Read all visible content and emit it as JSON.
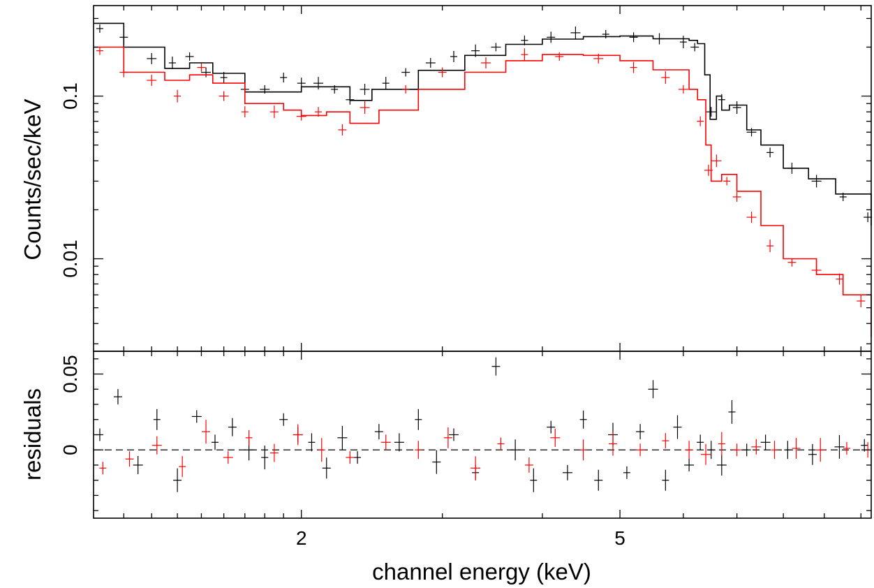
{
  "colors": {
    "series_1": "#000000",
    "series_2": "#ff0000"
  },
  "chart_data": [
    {
      "type": "line",
      "panel": "spectrum",
      "title": "",
      "xlabel": "",
      "ylabel": "Counts/sec/keV",
      "xscale": "log",
      "yscale": "log",
      "xlim": [
        1.1,
        10.3
      ],
      "ylim": [
        0.0027,
        0.36
      ],
      "x_ticks": [
        2,
        5
      ],
      "x_tick_labels": [
        "",
        ""
      ],
      "y_ticks": [
        0.01,
        0.1
      ],
      "y_tick_labels": [
        "0.01",
        "0.1"
      ],
      "grid": false,
      "legend": "none",
      "series": [
        {
          "color": "#000000",
          "model": [
            [
              1.1,
              0.28
            ],
            [
              1.2,
              0.2
            ],
            [
              1.35,
              0.148
            ],
            [
              1.45,
              0.16
            ],
            [
              1.55,
              0.138
            ],
            [
              1.7,
              0.106
            ],
            [
              1.85,
              0.106
            ],
            [
              2.0,
              0.114
            ],
            [
              2.15,
              0.114
            ],
            [
              2.3,
              0.094
            ],
            [
              2.45,
              0.11
            ],
            [
              2.8,
              0.144
            ],
            [
              3.2,
              0.178
            ],
            [
              3.6,
              0.208
            ],
            [
              4.0,
              0.224
            ],
            [
              4.5,
              0.232
            ],
            [
              5.0,
              0.234
            ],
            [
              5.5,
              0.225
            ],
            [
              6.1,
              0.22
            ],
            [
              6.25,
              0.21
            ],
            [
              6.38,
              0.135
            ],
            [
              6.48,
              0.072
            ],
            [
              6.6,
              0.1
            ],
            [
              6.7,
              0.082
            ],
            [
              6.85,
              0.088
            ],
            [
              7.2,
              0.062
            ],
            [
              7.5,
              0.05
            ],
            [
              8.0,
              0.036
            ],
            [
              8.6,
              0.031
            ],
            [
              9.3,
              0.025
            ],
            [
              10.3,
              0.016
            ]
          ],
          "points": [
            [
              1.12,
              0.26
            ],
            [
              1.2,
              0.23
            ],
            [
              1.3,
              0.17
            ],
            [
              1.38,
              0.16
            ],
            [
              1.45,
              0.175
            ],
            [
              1.52,
              0.14
            ],
            [
              1.6,
              0.13
            ],
            [
              1.7,
              0.11
            ],
            [
              1.8,
              0.11
            ],
            [
              1.9,
              0.13
            ],
            [
              2.0,
              0.12
            ],
            [
              2.1,
              0.12
            ],
            [
              2.2,
              0.11
            ],
            [
              2.3,
              0.095
            ],
            [
              2.4,
              0.11
            ],
            [
              2.55,
              0.12
            ],
            [
              2.7,
              0.14
            ],
            [
              2.9,
              0.16
            ],
            [
              3.1,
              0.175
            ],
            [
              3.3,
              0.19
            ],
            [
              3.5,
              0.2
            ],
            [
              3.8,
              0.22
            ],
            [
              4.1,
              0.23
            ],
            [
              4.4,
              0.245
            ],
            [
              4.8,
              0.24
            ],
            [
              5.2,
              0.23
            ],
            [
              5.6,
              0.225
            ],
            [
              6.0,
              0.215
            ],
            [
              6.2,
              0.2
            ],
            [
              6.5,
              0.08
            ],
            [
              6.7,
              0.095
            ],
            [
              7.0,
              0.085
            ],
            [
              7.3,
              0.06
            ],
            [
              7.7,
              0.045
            ],
            [
              8.2,
              0.036
            ],
            [
              8.8,
              0.03
            ],
            [
              9.5,
              0.024
            ],
            [
              10.2,
              0.018
            ]
          ]
        },
        {
          "color": "#ff0000",
          "model": [
            [
              1.1,
              0.2
            ],
            [
              1.2,
              0.14
            ],
            [
              1.35,
              0.125
            ],
            [
              1.45,
              0.135
            ],
            [
              1.55,
              0.12
            ],
            [
              1.7,
              0.09
            ],
            [
              1.9,
              0.082
            ],
            [
              2.0,
              0.076
            ],
            [
              2.15,
              0.08
            ],
            [
              2.3,
              0.068
            ],
            [
              2.5,
              0.082
            ],
            [
              2.8,
              0.11
            ],
            [
              3.2,
              0.14
            ],
            [
              3.6,
              0.165
            ],
            [
              4.0,
              0.18
            ],
            [
              4.5,
              0.178
            ],
            [
              5.0,
              0.165
            ],
            [
              5.5,
              0.145
            ],
            [
              6.1,
              0.11
            ],
            [
              6.25,
              0.095
            ],
            [
              6.4,
              0.05
            ],
            [
              6.5,
              0.03
            ],
            [
              6.7,
              0.033
            ],
            [
              7.0,
              0.026
            ],
            [
              7.5,
              0.016
            ],
            [
              8.0,
              0.01
            ],
            [
              8.8,
              0.008
            ],
            [
              9.5,
              0.006
            ],
            [
              10.3,
              0.0033
            ]
          ],
          "points": [
            [
              1.12,
              0.19
            ],
            [
              1.2,
              0.14
            ],
            [
              1.3,
              0.125
            ],
            [
              1.4,
              0.1
            ],
            [
              1.5,
              0.15
            ],
            [
              1.6,
              0.1
            ],
            [
              1.7,
              0.08
            ],
            [
              1.85,
              0.08
            ],
            [
              2.0,
              0.075
            ],
            [
              2.1,
              0.08
            ],
            [
              2.25,
              0.062
            ],
            [
              2.4,
              0.085
            ],
            [
              2.7,
              0.11
            ],
            [
              3.0,
              0.14
            ],
            [
              3.4,
              0.16
            ],
            [
              3.8,
              0.18
            ],
            [
              4.2,
              0.175
            ],
            [
              4.7,
              0.17
            ],
            [
              5.2,
              0.15
            ],
            [
              5.7,
              0.13
            ],
            [
              6.0,
              0.11
            ],
            [
              6.3,
              0.07
            ],
            [
              6.45,
              0.035
            ],
            [
              6.6,
              0.04
            ],
            [
              6.8,
              0.03
            ],
            [
              7.0,
              0.024
            ],
            [
              7.3,
              0.018
            ],
            [
              7.7,
              0.012
            ],
            [
              8.2,
              0.0095
            ],
            [
              8.8,
              0.0085
            ],
            [
              9.4,
              0.0075
            ],
            [
              10.0,
              0.0055
            ]
          ]
        }
      ]
    },
    {
      "type": "scatter",
      "panel": "residuals",
      "title": "",
      "xlabel": "channel energy (keV)",
      "ylabel": "residuals",
      "xscale": "log",
      "yscale": "linear",
      "xlim": [
        1.1,
        10.3
      ],
      "ylim": [
        -0.045,
        0.065
      ],
      "x_ticks": [
        2,
        5
      ],
      "x_tick_labels": [
        "2",
        "5"
      ],
      "y_ticks": [
        0,
        0.05
      ],
      "y_tick_labels": [
        "0",
        "0.05"
      ],
      "grid": false,
      "legend": "none",
      "baseline": 0,
      "series": [
        {
          "color": "#000000",
          "points": [
            [
              1.12,
              0.01
            ],
            [
              1.18,
              0.035
            ],
            [
              1.25,
              -0.01
            ],
            [
              1.32,
              0.02
            ],
            [
              1.4,
              -0.02
            ],
            [
              1.48,
              0.022
            ],
            [
              1.56,
              0.005
            ],
            [
              1.64,
              0.015
            ],
            [
              1.72,
              0.0
            ],
            [
              1.8,
              -0.005
            ],
            [
              1.9,
              0.02
            ],
            [
              1.98,
              0.01
            ],
            [
              2.06,
              0.005
            ],
            [
              2.15,
              -0.012
            ],
            [
              2.25,
              0.008
            ],
            [
              2.35,
              -0.005
            ],
            [
              2.5,
              0.012
            ],
            [
              2.65,
              0.005
            ],
            [
              2.8,
              0.02
            ],
            [
              2.95,
              -0.008
            ],
            [
              3.1,
              0.01
            ],
            [
              3.3,
              -0.015
            ],
            [
              3.5,
              0.055
            ],
            [
              3.7,
              0.0
            ],
            [
              3.9,
              -0.02
            ],
            [
              4.1,
              0.015
            ],
            [
              4.3,
              -0.015
            ],
            [
              4.5,
              0.02
            ],
            [
              4.7,
              -0.02
            ],
            [
              4.9,
              0.01
            ],
            [
              5.1,
              -0.015
            ],
            [
              5.3,
              0.012
            ],
            [
              5.5,
              0.04
            ],
            [
              5.7,
              -0.02
            ],
            [
              5.9,
              0.015
            ],
            [
              6.1,
              -0.01
            ],
            [
              6.3,
              0.005
            ],
            [
              6.5,
              0.0
            ],
            [
              6.7,
              -0.01
            ],
            [
              6.9,
              0.025
            ],
            [
              7.2,
              0.0
            ],
            [
              7.6,
              0.005
            ],
            [
              8.1,
              0.0
            ],
            [
              8.7,
              -0.003
            ],
            [
              9.4,
              0.002
            ],
            [
              10.1,
              0.003
            ]
          ]
        },
        {
          "color": "#ff0000",
          "points": [
            [
              1.13,
              -0.012
            ],
            [
              1.22,
              -0.006
            ],
            [
              1.32,
              0.003
            ],
            [
              1.42,
              -0.011
            ],
            [
              1.52,
              0.012
            ],
            [
              1.62,
              -0.005
            ],
            [
              1.72,
              0.008
            ],
            [
              1.85,
              -0.002
            ],
            [
              1.98,
              0.01
            ],
            [
              2.12,
              0.0
            ],
            [
              2.3,
              -0.005
            ],
            [
              2.55,
              0.005
            ],
            [
              2.8,
              0.0
            ],
            [
              3.05,
              0.008
            ],
            [
              3.3,
              -0.012
            ],
            [
              3.55,
              0.004
            ],
            [
              3.85,
              -0.01
            ],
            [
              4.15,
              0.008
            ],
            [
              4.5,
              0.0
            ],
            [
              4.9,
              0.004
            ],
            [
              5.3,
              0.0
            ],
            [
              5.7,
              0.006
            ],
            [
              6.1,
              0.0
            ],
            [
              6.4,
              -0.003
            ],
            [
              6.7,
              0.004
            ],
            [
              7.0,
              0.0
            ],
            [
              7.4,
              0.002
            ],
            [
              7.8,
              0.0
            ],
            [
              8.3,
              0.001
            ],
            [
              8.9,
              0.0
            ],
            [
              9.6,
              0.001
            ],
            [
              10.2,
              0.0
            ]
          ]
        }
      ]
    }
  ]
}
